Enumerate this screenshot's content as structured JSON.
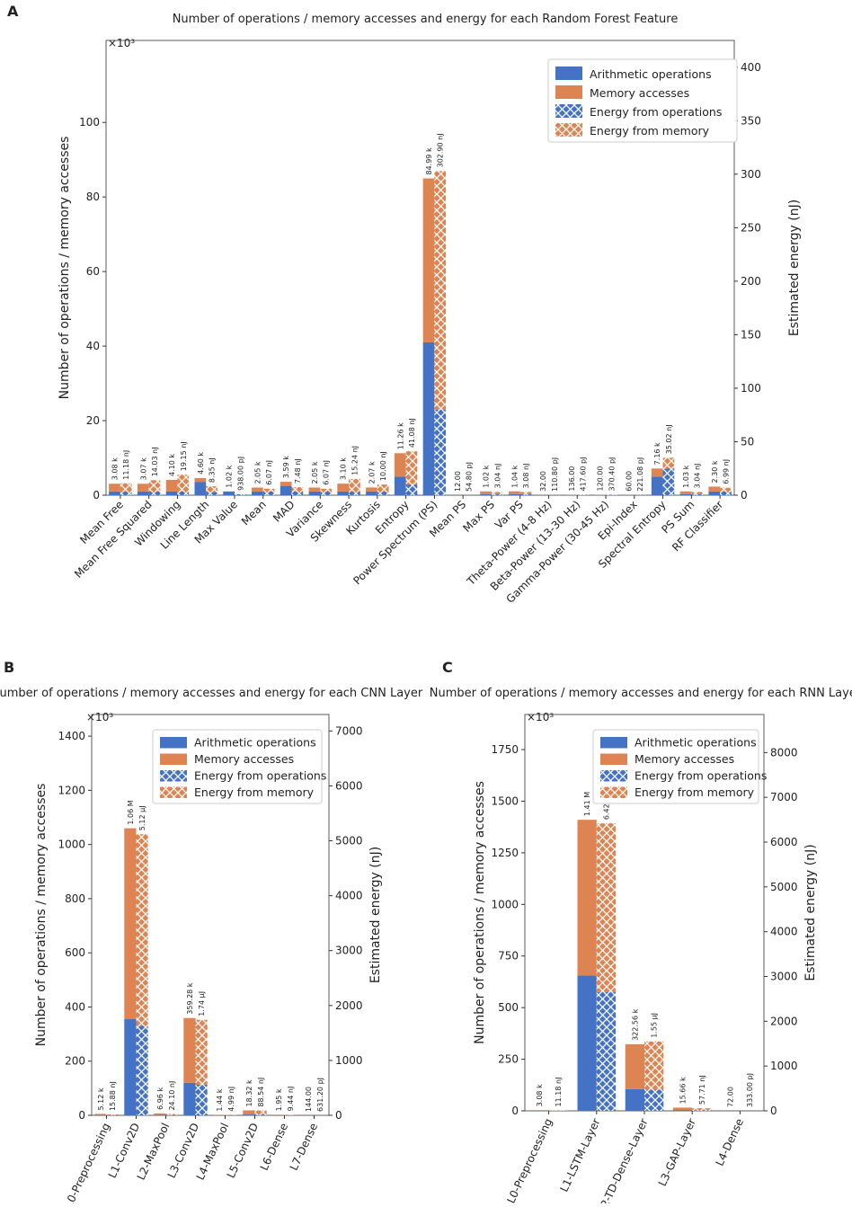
{
  "colors": {
    "ops": "#4472c4",
    "mem": "#dd8452"
  },
  "chart_data": [
    {
      "type": "bar",
      "panel": "A",
      "title": "Number of operations / memory accesses and energy for each Random Forest Feature",
      "ylabel": "Number of operations / memory accesses",
      "ylabel2": "Estimated energy (nJ)",
      "multiplier": "×10³",
      "ylim": [
        0,
        122
      ],
      "y2lim": [
        0,
        425
      ],
      "yticks": [
        0,
        20,
        40,
        60,
        80,
        100
      ],
      "y2ticks": [
        0,
        50,
        100,
        150,
        200,
        250,
        300,
        350,
        400
      ],
      "legend": {
        "position": "top-right",
        "entries": [
          "Arithmetic operations",
          "Memory accesses",
          "Energy from operations",
          "Energy from memory"
        ]
      },
      "categories": [
        "Mean Free",
        "Mean Free Squared",
        "Windowing",
        "Line Length",
        "Max Value",
        "Mean",
        "MAD",
        "Variance",
        "Skewness",
        "Kurtosis",
        "Entropy",
        "Power Spectrum (PS)",
        "Mean PS",
        "Max PS",
        "Var PS",
        "Theta-Power (4-8 Hz)",
        "Beta-Power (13-30 Hz)",
        "Gamma-Power (30-45 Hz)",
        "Epi-Index",
        "Spectral Entropy",
        "PS Sum",
        "RF Classifier"
      ],
      "ops": [
        1.0,
        1.0,
        1.0,
        3.5,
        1.0,
        1.0,
        2.5,
        1.0,
        1.0,
        1.0,
        5.0,
        41.0,
        0.01,
        0.3,
        0.3,
        0.01,
        0.05,
        0.05,
        0.02,
        5.0,
        0.3,
        1.0
      ],
      "mem": [
        2.08,
        2.07,
        3.1,
        1.1,
        0.02,
        1.05,
        1.09,
        1.05,
        2.1,
        1.07,
        6.26,
        43.99,
        0.0,
        0.72,
        0.74,
        0.02,
        0.05,
        0.07,
        0.04,
        2.16,
        0.73,
        1.3
      ],
      "energy_ops": [
        3.5,
        3.5,
        3.5,
        3.0,
        0.9,
        3.5,
        3.5,
        3.5,
        3.5,
        3.5,
        10.0,
        80.0,
        0.05,
        1.0,
        1.0,
        0.1,
        0.4,
        0.37,
        0.2,
        25.0,
        1.0,
        3.5
      ],
      "energy_mem": [
        7.68,
        10.53,
        15.65,
        5.35,
        0.04,
        2.57,
        3.98,
        2.57,
        11.74,
        6.5,
        31.08,
        222.9,
        0.0,
        2.04,
        2.08,
        0.01,
        0.02,
        0.0,
        0.02,
        10.02,
        2.04,
        3.49
      ],
      "label_count": [
        "3.08 k",
        "3.07 k",
        "4.10 k",
        "4.60 k",
        "1.02 k",
        "2.05 k",
        "3.59 k",
        "2.05 k",
        "3.10 k",
        "2.07 k",
        "11.26 k",
        "84.99 k",
        "12.00",
        "1.02 k",
        "1.04 k",
        "32.00",
        "136.00",
        "120.00",
        "60.00",
        "7.16 k",
        "1.03 k",
        "2.30 k"
      ],
      "label_energy": [
        "11.18 nJ",
        "14.03 nJ",
        "19.15 nJ",
        "8.35 nJ",
        "938.00 pJ",
        "6.07 nJ",
        "7.48 nJ",
        "6.07 nJ",
        "15.24 nJ",
        "10.00 nJ",
        "41.08 nJ",
        "302.90 nJ",
        "54.80 pJ",
        "3.04 nJ",
        "3.08 nJ",
        "110.80 pJ",
        "417.60 pJ",
        "370.40 pJ",
        "221.08 pJ",
        "35.02 nJ",
        "3.04 nJ",
        "6.99 nJ"
      ]
    },
    {
      "type": "bar",
      "panel": "B",
      "title": "Number of operations / memory accesses and energy for each CNN Layer",
      "ylabel": "Number of operations / memory accesses",
      "ylabel2": "Estimated energy (nJ)",
      "multiplier": "×10³",
      "ylim": [
        0,
        1480
      ],
      "y2lim": [
        0,
        7300
      ],
      "yticks": [
        0,
        200,
        400,
        600,
        800,
        1000,
        1200,
        1400
      ],
      "y2ticks": [
        0,
        1000,
        2000,
        3000,
        4000,
        5000,
        6000,
        7000
      ],
      "legend": {
        "position": "top-right",
        "entries": [
          "Arithmetic operations",
          "Memory accesses",
          "Energy from operations",
          "Energy from memory"
        ]
      },
      "categories": [
        "L0-Preprocessing",
        "L1-Conv2D",
        "L2-MaxPool",
        "L3-Conv2D",
        "L4-MaxPool",
        "L5-Conv2D",
        "L6-Dense",
        "L7-Dense"
      ],
      "ops": [
        1.0,
        355,
        1.0,
        120,
        0.5,
        3,
        0.8,
        0.06
      ],
      "mem": [
        4.12,
        705,
        5.96,
        239.28,
        0.94,
        15.32,
        1.15,
        0.08
      ],
      "energy_ops": [
        5,
        1630,
        5,
        560,
        2,
        15,
        4,
        0.3
      ],
      "energy_mem": [
        10.88,
        3490,
        19.1,
        1180,
        2.99,
        73.54,
        5.44,
        0.33
      ],
      "label_count": [
        "5.12 k",
        "1.06 M",
        "6.96 k",
        "359.28 k",
        "1.44 k",
        "18.32 k",
        "1.95 k",
        "144.00"
      ],
      "label_energy": [
        "15.88 nJ",
        "5.12 μJ",
        "24.10 nJ",
        "1.74 μJ",
        "4.99 nJ",
        "88.54 nJ",
        "9.44 nJ",
        "631.20 pJ"
      ]
    },
    {
      "type": "bar",
      "panel": "C",
      "title": "Number of operations / memory accesses and energy for each RNN Layer",
      "ylabel": "Number of operations / memory accesses",
      "ylabel2": "Estimated energy (nJ)",
      "multiplier": "×10³",
      "ylim": [
        0,
        1920
      ],
      "y2lim": [
        0,
        8850
      ],
      "yticks": [
        0,
        250,
        500,
        750,
        1000,
        1250,
        1500,
        1750
      ],
      "y2ticks": [
        0,
        1000,
        2000,
        3000,
        4000,
        5000,
        6000,
        7000,
        8000
      ],
      "legend": {
        "position": "top-right",
        "entries": [
          "Arithmetic operations",
          "Memory accesses",
          "Energy from operations",
          "Energy from memory"
        ]
      },
      "categories": [
        "L0-Preprocessing",
        "L1-LSTM-Layer",
        "L2-TD-Dense-Layer",
        "L3-GAP-Layer",
        "L4-Dense"
      ],
      "ops": [
        1.0,
        655,
        105,
        4,
        0.03
      ],
      "mem": [
        2.08,
        755,
        217.56,
        11.66,
        0.04
      ],
      "energy_ops": [
        3.5,
        2650,
        470,
        15,
        0.15
      ],
      "energy_mem": [
        7.68,
        3770,
        1080,
        42.71,
        0.18
      ],
      "label_count": [
        "3.08 k",
        "1.41 M",
        "322.56 k",
        "15.66 k",
        "72.00"
      ],
      "label_energy": [
        "11.18 nJ",
        "6.42 μJ",
        "1.55 μJ",
        "57.71 nJ",
        "333.00 pJ"
      ]
    }
  ]
}
